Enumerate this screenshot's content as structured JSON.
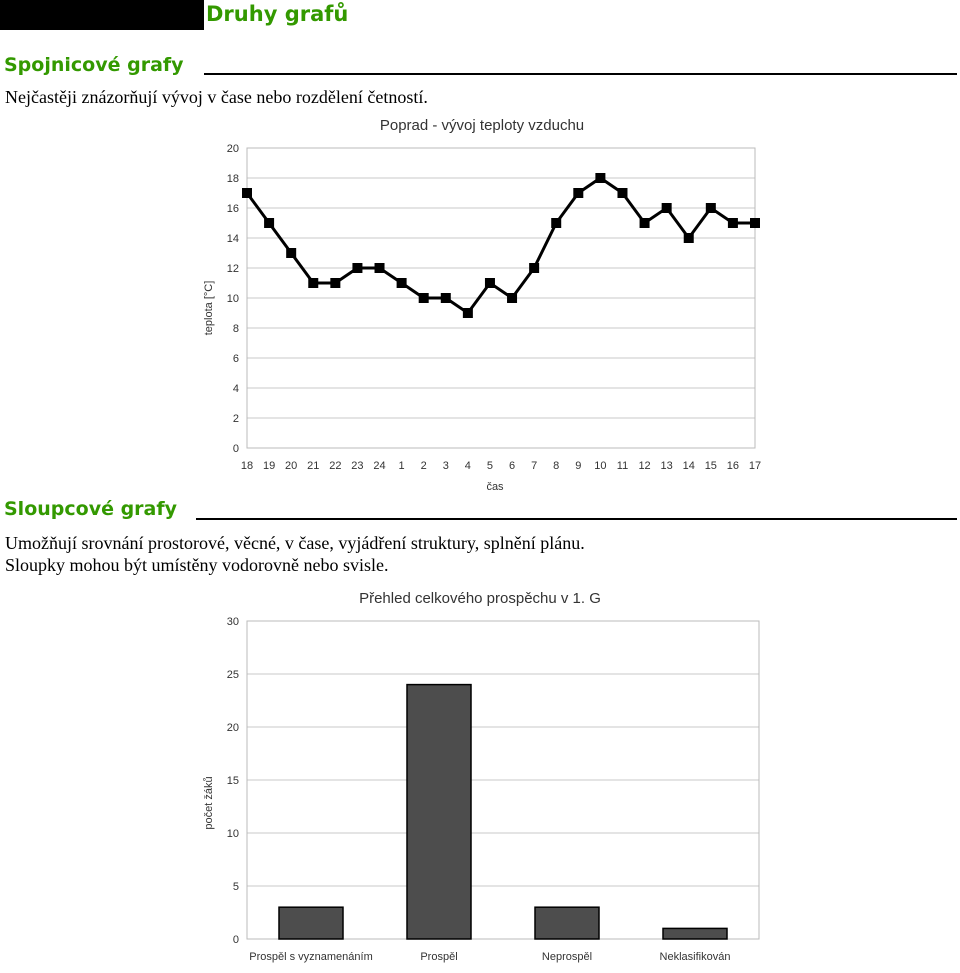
{
  "page": {
    "title": "Druhy grafů"
  },
  "sections": [
    {
      "heading": "Spojnicové grafy",
      "lines": [
        "Nejčastěji znázorňují vývoj v čase nebo rozdělení četností."
      ]
    },
    {
      "heading": "Sloupcové grafy",
      "lines": [
        "Umožňují srovnání prostorové, věcné, v čase, vyjádření struktury, splnění plánu.",
        "Sloupky mohou být umístěny vodorovně nebo svisle."
      ]
    }
  ],
  "chart_data": [
    {
      "type": "line",
      "title": "Poprad - vývoj teploty vzduchu",
      "xlabel": "čas",
      "ylabel": "teplota [°C]",
      "categories": [
        "18",
        "19",
        "20",
        "21",
        "22",
        "23",
        "24",
        "1",
        "2",
        "3",
        "4",
        "5",
        "6",
        "7",
        "8",
        "9",
        "10",
        "11",
        "12",
        "13",
        "14",
        "15",
        "16",
        "17"
      ],
      "values": [
        17,
        15,
        13,
        11,
        11,
        12,
        12,
        11,
        10,
        10,
        9,
        11,
        10,
        12,
        15,
        17,
        18,
        17,
        15,
        16,
        14,
        16,
        15,
        15
      ],
      "ylim": [
        0,
        20
      ],
      "yticks": [
        "0",
        "2",
        "4",
        "6",
        "8",
        "10",
        "12",
        "14",
        "16",
        "18",
        "20"
      ],
      "grid": true,
      "line_color": "#000000"
    },
    {
      "type": "bar",
      "title": "Přehled celkového prospěchu v 1. G",
      "xlabel": "",
      "ylabel": "počet žáků",
      "categories": [
        "Prospěl s vyznamenáním",
        "Prospěl",
        "Neprospěl",
        "Neklasifikován"
      ],
      "values": [
        3,
        24,
        3,
        1
      ],
      "ylim": [
        0,
        30
      ],
      "yticks": [
        "0",
        "5",
        "10",
        "15",
        "20",
        "25",
        "30"
      ],
      "grid": true,
      "bar_color": "#4d4d4d"
    }
  ]
}
